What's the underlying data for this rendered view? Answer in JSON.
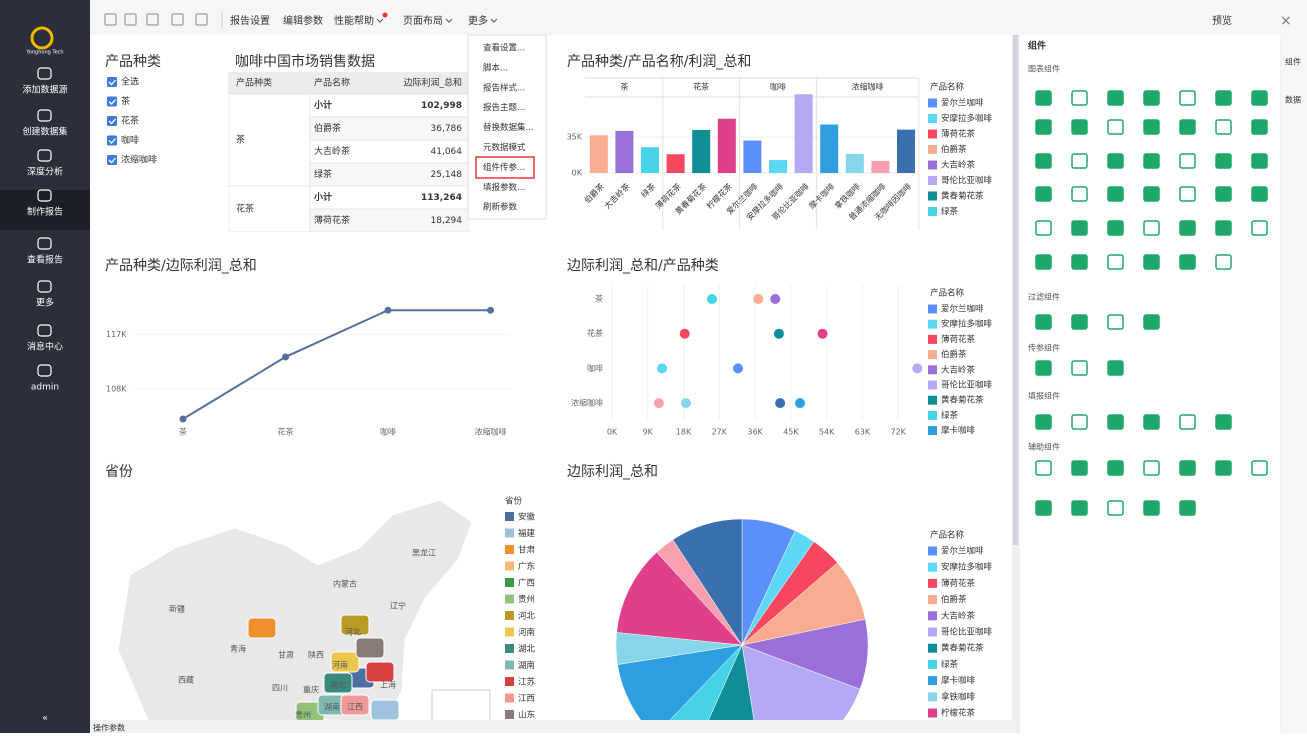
{
  "sidebar": {
    "logo": "Yonghong Tech",
    "items": [
      "添加数据源",
      "创建数据集",
      "深度分析",
      "制作报告",
      "查看报告",
      "更多",
      "消息中心",
      "admin"
    ]
  },
  "toolbar": {
    "menus": [
      "报告设置",
      "编辑参数",
      "性能帮助",
      "页面布局",
      "更多"
    ],
    "preview": "预览"
  },
  "more_menu": {
    "items": [
      "查看设置...",
      "脚本...",
      "报告样式...",
      "报告主题...",
      "替换数据集...",
      "元数据模式",
      "组件传参...",
      "填报参数...",
      "刷新参数"
    ]
  },
  "filter": {
    "title": "产品种类",
    "options": [
      "全选",
      "茶",
      "花茶",
      "咖啡",
      "浓缩咖啡"
    ]
  },
  "table": {
    "title": "咖啡中国市场销售数据",
    "columns": [
      "产品种类",
      "产品名称",
      "边际利润_总和"
    ],
    "groups": [
      {
        "name": "茶",
        "rows": [
          [
            "小计",
            "102,998"
          ],
          [
            "伯爵茶",
            "36,786"
          ],
          [
            "大吉岭茶",
            "41,064"
          ],
          [
            "绿茶",
            "25,148"
          ]
        ]
      },
      {
        "name": "花茶",
        "rows": [
          [
            "小计",
            "113,264"
          ],
          [
            "薄荷花茶",
            "18,294"
          ]
        ]
      }
    ]
  },
  "map": {
    "title": "省份",
    "legend_title": "省份",
    "legend": [
      {
        "name": "安徽",
        "color": "#4b6fa0"
      },
      {
        "name": "福建",
        "color": "#9fc1e0"
      },
      {
        "name": "甘肃",
        "color": "#f0902a"
      },
      {
        "name": "广东",
        "color": "#f7b879"
      },
      {
        "name": "广西",
        "color": "#3b9a3e"
      },
      {
        "name": "贵州",
        "color": "#93c37a"
      },
      {
        "name": "河北",
        "color": "#b89b24"
      },
      {
        "name": "河南",
        "color": "#e9c84c"
      },
      {
        "name": "湖北",
        "color": "#3a8a80"
      },
      {
        "name": "湖南",
        "color": "#7fb8b0"
      },
      {
        "name": "江苏",
        "color": "#d94040"
      },
      {
        "name": "江西",
        "color": "#f09a98"
      },
      {
        "name": "山东",
        "color": "#8a7a78"
      }
    ],
    "labels": [
      "黑龙江",
      "内蒙古",
      "辽宁",
      "新疆",
      "西藏",
      "青海",
      "甘肃",
      "陕西",
      "河北",
      "河南",
      "四川",
      "重庆",
      "湖北",
      "湖南",
      "江西",
      "贵州",
      "上海"
    ]
  },
  "right_panel": {
    "title": "组件",
    "sections": [
      "图表组件",
      "过滤组件",
      "传参组件",
      "填报组件",
      "辅助组件"
    ],
    "tabs": [
      "组件",
      "数据"
    ]
  },
  "bottom_tab": "操作参数",
  "chart_data": [
    {
      "type": "bar",
      "title": "产品种类/产品名称/利润_总和",
      "ylim": [
        0,
        80000
      ],
      "yticks": [
        {
          "value": 0,
          "label": "0K"
        },
        {
          "value": 35000,
          "label": "35K"
        }
      ],
      "groups": [
        {
          "name": "茶",
          "categories": [
            "伯爵茶",
            "大吉岭茶",
            "绿茶"
          ],
          "values": [
            36786,
            41064,
            25148
          ],
          "colors": [
            "#f9ac8f",
            "#9a6fd8",
            "#46d3e8"
          ]
        },
        {
          "name": "花茶",
          "categories": [
            "薄荷花茶",
            "黄春菊花茶",
            "柠檬花茶"
          ],
          "values": [
            18294,
            42000,
            52970
          ],
          "colors": [
            "#f5475f",
            "#0e8e96",
            "#e0408a"
          ]
        },
        {
          "name": "咖啡",
          "categories": [
            "爱尔兰咖啡",
            "安摩拉多咖啡",
            "哥伦比亚咖啡"
          ],
          "values": [
            31700,
            12600,
            76800
          ],
          "colors": [
            "#5b8ff9",
            "#5ad8f6",
            "#b3a9f5"
          ]
        },
        {
          "name": "浓缩咖啡",
          "categories": [
            "摩卡咖啡",
            "拿铁咖啡",
            "普通浓缩咖啡",
            "无咖啡因咖啡"
          ],
          "values": [
            47300,
            18600,
            11800,
            42300
          ],
          "colors": [
            "#2d9fe0",
            "#86d5ea",
            "#f8a0b0",
            "#3a6fb0"
          ]
        }
      ],
      "legend_title": "产品名称",
      "legend": [
        {
          "name": "爱尔兰咖啡",
          "color": "#5b8ff9"
        },
        {
          "name": "安摩拉多咖啡",
          "color": "#5ad8f6"
        },
        {
          "name": "薄荷花茶",
          "color": "#f5475f"
        },
        {
          "name": "伯爵茶",
          "color": "#f9ac8f"
        },
        {
          "name": "大吉岭茶",
          "color": "#9a6fd8"
        },
        {
          "name": "哥伦比亚咖啡",
          "color": "#b3a9f5"
        },
        {
          "name": "黄春菊花茶",
          "color": "#0e8e96"
        },
        {
          "name": "绿茶",
          "color": "#46d3e8"
        }
      ]
    },
    {
      "type": "line",
      "title": "产品种类/边际利润_总和",
      "categories": [
        "茶",
        "花茶",
        "咖啡",
        "浓缩咖啡"
      ],
      "values": [
        102998,
        113264,
        121000,
        121000
      ],
      "color": "#5470a0",
      "ylim": [
        102000,
        126000
      ],
      "yticks": [
        {
          "value": 108000,
          "label": "108K"
        },
        {
          "value": 117000,
          "label": "117K"
        }
      ]
    },
    {
      "type": "dot",
      "title": "边际利润_总和/产品种类",
      "categories": [
        "茶",
        "花茶",
        "咖啡",
        "浓缩咖啡"
      ],
      "legend_title": "产品名称",
      "xlim": [
        0,
        80000
      ],
      "xticks": [
        {
          "value": 0,
          "label": "0K"
        },
        {
          "value": 9000,
          "label": "9K"
        },
        {
          "value": 18000,
          "label": "18K"
        },
        {
          "value": 27000,
          "label": "27K"
        },
        {
          "value": 36000,
          "label": "36K"
        },
        {
          "value": 45000,
          "label": "45K"
        },
        {
          "value": 54000,
          "label": "54K"
        },
        {
          "value": 63000,
          "label": "63K"
        },
        {
          "value": 72000,
          "label": "72K"
        }
      ],
      "series": [
        {
          "name": "爱尔兰咖啡",
          "color": "#5b8ff9",
          "values": [
            null,
            null,
            31700,
            null
          ]
        },
        {
          "name": "安摩拉多咖啡",
          "color": "#5ad8f6",
          "values": [
            null,
            null,
            12600,
            null
          ]
        },
        {
          "name": "薄荷花茶",
          "color": "#f5475f",
          "values": [
            null,
            18294,
            null,
            null
          ]
        },
        {
          "name": "伯爵茶",
          "color": "#f9ac8f",
          "values": [
            36786,
            null,
            null,
            null
          ]
        },
        {
          "name": "大吉岭茶",
          "color": "#9a6fd8",
          "values": [
            41064,
            null,
            null,
            null
          ]
        },
        {
          "name": "哥伦比亚咖啡",
          "color": "#b3a9f5",
          "values": [
            null,
            null,
            76800,
            null
          ]
        },
        {
          "name": "黄春菊花茶",
          "color": "#0e8e96",
          "values": [
            null,
            42000,
            null,
            null
          ]
        },
        {
          "name": "绿茶",
          "color": "#46d3e8",
          "values": [
            25148,
            null,
            null,
            null
          ]
        },
        {
          "name": "摩卡咖啡",
          "color": "#2d9fe0",
          "values": [
            null,
            null,
            null,
            47300
          ]
        },
        {
          "name": "拿铁咖啡",
          "color": "#86d5ea",
          "values": [
            null,
            null,
            null,
            18600
          ]
        },
        {
          "name": "柠檬花茶",
          "color": "#e0408a",
          "values": [
            null,
            52970,
            null,
            null
          ]
        },
        {
          "name": "普通浓缩咖啡",
          "color": "#f8a0b0",
          "values": [
            null,
            null,
            null,
            11800
          ]
        },
        {
          "name": "无咖啡因咖啡",
          "color": "#3a6fb0",
          "values": [
            null,
            null,
            null,
            42300
          ]
        }
      ]
    },
    {
      "type": "pie",
      "title": "边际利润_总和",
      "legend_title": "产品名称",
      "categories": [
        "爱尔兰咖啡",
        "安摩拉多咖啡",
        "薄荷花茶",
        "伯爵茶",
        "大吉岭茶",
        "哥伦比亚咖啡",
        "黄春菊花茶",
        "绿茶",
        "摩卡咖啡",
        "拿铁咖啡",
        "柠檬花茶",
        "普通浓缩咖啡",
        "无咖啡因咖啡"
      ],
      "values": [
        31700,
        12600,
        18294,
        36786,
        41064,
        76800,
        42000,
        25148,
        47300,
        18600,
        52970,
        11800,
        42300
      ],
      "colors": [
        "#5b8ff9",
        "#5ad8f6",
        "#f5475f",
        "#f9ac8f",
        "#9a6fd8",
        "#b3a9f5",
        "#0e8e96",
        "#46d3e8",
        "#2d9fe0",
        "#86d5ea",
        "#e0408a",
        "#f8a0b0",
        "#3a6fb0"
      ]
    }
  ]
}
